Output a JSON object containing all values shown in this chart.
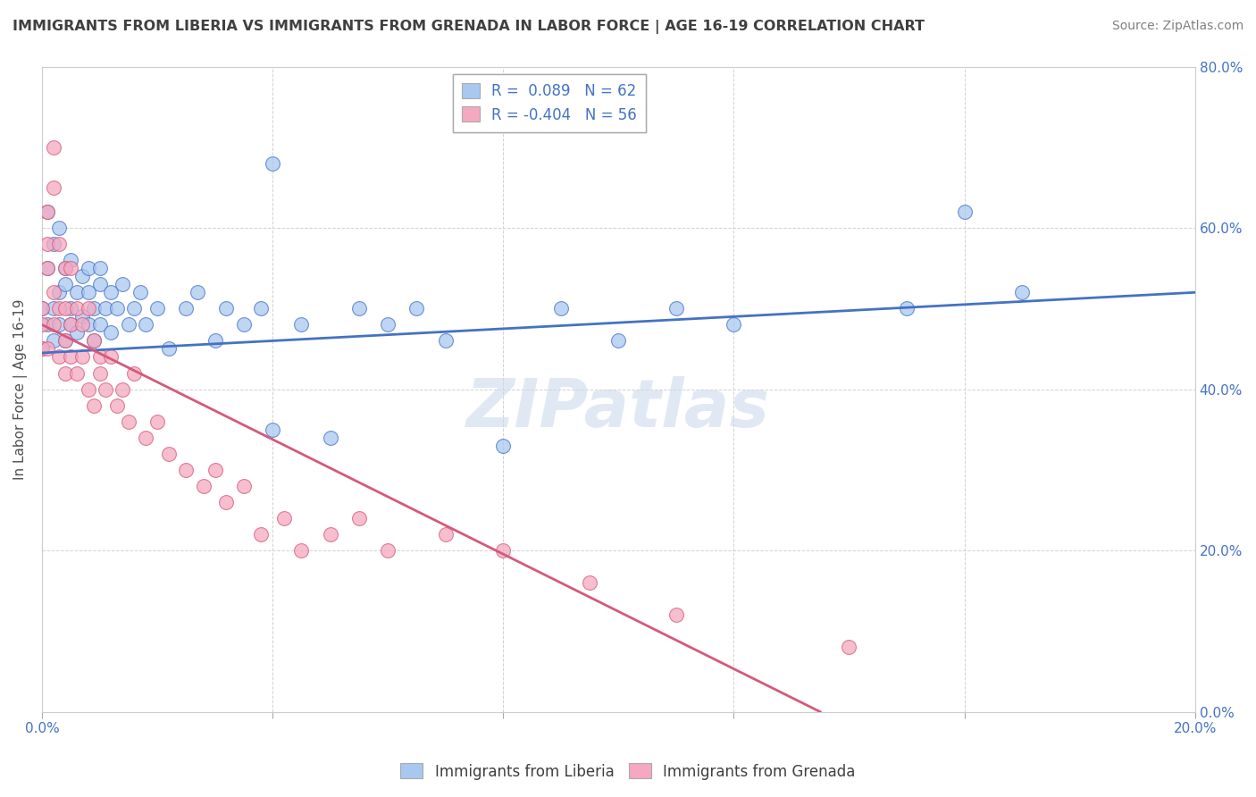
{
  "title": "IMMIGRANTS FROM LIBERIA VS IMMIGRANTS FROM GRENADA IN LABOR FORCE | AGE 16-19 CORRELATION CHART",
  "source": "Source: ZipAtlas.com",
  "ylabel": "In Labor Force | Age 16-19",
  "xlim": [
    0.0,
    0.2
  ],
  "ylim": [
    0.0,
    0.8
  ],
  "xtick_positions": [
    0.0,
    0.04,
    0.08,
    0.12,
    0.16,
    0.2
  ],
  "ytick_positions": [
    0.0,
    0.2,
    0.4,
    0.6,
    0.8
  ],
  "liberia_R": 0.089,
  "liberia_N": 62,
  "grenada_R": -0.404,
  "grenada_N": 56,
  "legend_label_liberia": "Immigrants from Liberia",
  "legend_label_grenada": "Immigrants from Grenada",
  "liberia_color": "#a8c8f0",
  "grenada_color": "#f5a8c0",
  "line_liberia_color": "#4472c4",
  "line_grenada_color": "#d45a7a",
  "watermark": "ZIPatlas",
  "liberia_scatter_x": [
    0.0,
    0.0,
    0.001,
    0.001,
    0.001,
    0.002,
    0.002,
    0.002,
    0.003,
    0.003,
    0.003,
    0.004,
    0.004,
    0.004,
    0.005,
    0.005,
    0.005,
    0.006,
    0.006,
    0.007,
    0.007,
    0.008,
    0.008,
    0.008,
    0.009,
    0.009,
    0.01,
    0.01,
    0.01,
    0.011,
    0.012,
    0.012,
    0.013,
    0.014,
    0.015,
    0.016,
    0.017,
    0.018,
    0.02,
    0.022,
    0.025,
    0.027,
    0.03,
    0.032,
    0.035,
    0.038,
    0.04,
    0.045,
    0.05,
    0.055,
    0.06,
    0.065,
    0.07,
    0.08,
    0.09,
    0.1,
    0.11,
    0.12,
    0.15,
    0.17,
    0.04,
    0.16
  ],
  "liberia_scatter_y": [
    0.45,
    0.5,
    0.48,
    0.55,
    0.62,
    0.5,
    0.46,
    0.58,
    0.52,
    0.48,
    0.6,
    0.53,
    0.46,
    0.55,
    0.5,
    0.48,
    0.56,
    0.52,
    0.47,
    0.54,
    0.49,
    0.55,
    0.48,
    0.52,
    0.5,
    0.46,
    0.53,
    0.48,
    0.55,
    0.5,
    0.52,
    0.47,
    0.5,
    0.53,
    0.48,
    0.5,
    0.52,
    0.48,
    0.5,
    0.45,
    0.5,
    0.52,
    0.46,
    0.5,
    0.48,
    0.5,
    0.35,
    0.48,
    0.34,
    0.5,
    0.48,
    0.5,
    0.46,
    0.33,
    0.5,
    0.46,
    0.5,
    0.48,
    0.5,
    0.52,
    0.68,
    0.62
  ],
  "grenada_scatter_x": [
    0.0,
    0.0,
    0.0,
    0.001,
    0.001,
    0.001,
    0.001,
    0.002,
    0.002,
    0.002,
    0.002,
    0.003,
    0.003,
    0.003,
    0.004,
    0.004,
    0.004,
    0.004,
    0.005,
    0.005,
    0.005,
    0.006,
    0.006,
    0.007,
    0.007,
    0.008,
    0.008,
    0.009,
    0.009,
    0.01,
    0.01,
    0.011,
    0.012,
    0.013,
    0.014,
    0.015,
    0.016,
    0.018,
    0.02,
    0.022,
    0.025,
    0.028,
    0.03,
    0.032,
    0.035,
    0.038,
    0.042,
    0.045,
    0.05,
    0.055,
    0.06,
    0.07,
    0.08,
    0.095,
    0.11,
    0.14
  ],
  "grenada_scatter_y": [
    0.5,
    0.48,
    0.45,
    0.58,
    0.62,
    0.55,
    0.45,
    0.65,
    0.7,
    0.52,
    0.48,
    0.58,
    0.5,
    0.44,
    0.55,
    0.5,
    0.46,
    0.42,
    0.55,
    0.48,
    0.44,
    0.5,
    0.42,
    0.48,
    0.44,
    0.5,
    0.4,
    0.46,
    0.38,
    0.44,
    0.42,
    0.4,
    0.44,
    0.38,
    0.4,
    0.36,
    0.42,
    0.34,
    0.36,
    0.32,
    0.3,
    0.28,
    0.3,
    0.26,
    0.28,
    0.22,
    0.24,
    0.2,
    0.22,
    0.24,
    0.2,
    0.22,
    0.2,
    0.16,
    0.12,
    0.08
  ],
  "liberia_trend_x": [
    0.0,
    0.2
  ],
  "liberia_trend_y": [
    0.445,
    0.52
  ],
  "grenada_trend_x": [
    0.0,
    0.135
  ],
  "grenada_trend_y": [
    0.48,
    0.0
  ]
}
